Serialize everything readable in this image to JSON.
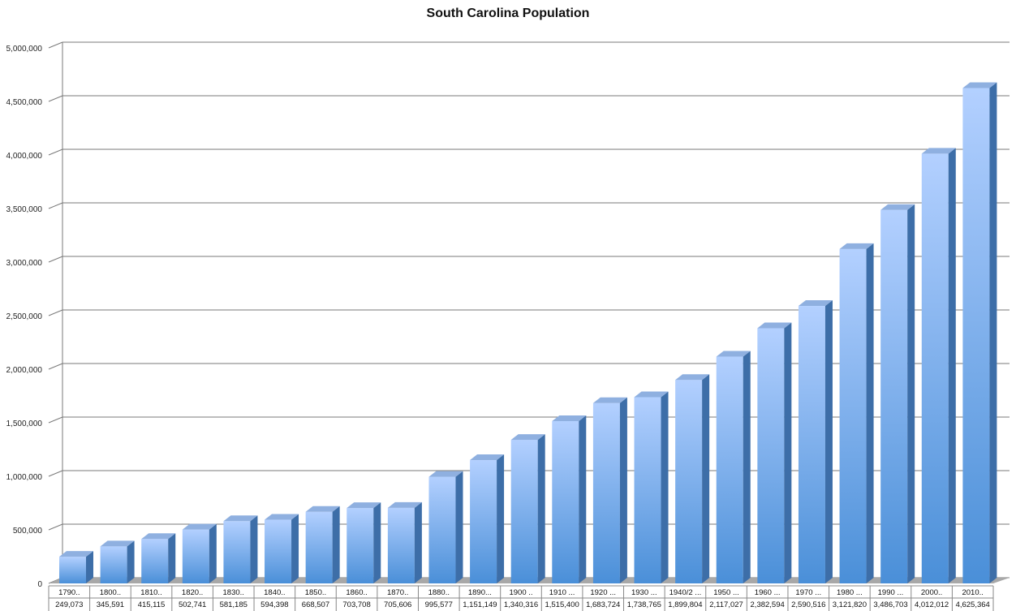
{
  "chart_data": {
    "type": "bar",
    "title": "South Carolina Population",
    "xlabel": "",
    "ylabel": "",
    "ylim": [
      0,
      5000000
    ],
    "y_ticks": [
      0,
      500000,
      1000000,
      1500000,
      2000000,
      2500000,
      3000000,
      3500000,
      4000000,
      4500000,
      5000000
    ],
    "y_tick_labels": [
      "0",
      "500,000",
      "1,000,000",
      "1,500,000",
      "2,000,000",
      "2,500,000",
      "3,000,000",
      "3,500,000",
      "4,000,000",
      "4,500,000",
      "5,000,000"
    ],
    "grid": true,
    "style": "3d-column",
    "categories": [
      "1790..",
      "1800..",
      "1810..",
      "1820..",
      "1830..",
      "1840..",
      "1850..",
      "1860..",
      "1870..",
      "1880..",
      "1890...",
      "1900 ..",
      "1910 ...",
      "1920 ...",
      "1930 ...",
      "1940/2 ...",
      "1950 ...",
      "1960 ...",
      "1970 ...",
      "1980 ...",
      "1990 ...",
      "2000..",
      "2010.."
    ],
    "values": [
      249073,
      345591,
      415115,
      502741,
      581185,
      594398,
      668507,
      703708,
      705606,
      995577,
      1151149,
      1340316,
      1515400,
      1683724,
      1738765,
      1899804,
      2117027,
      2382594,
      2590516,
      3121820,
      3486703,
      4012012,
      4625364
    ],
    "value_labels": [
      "249,073",
      "345,591",
      "415,115",
      "502,741",
      "581,185",
      "594,398",
      "668,507",
      "703,708",
      "705,606",
      "995,577",
      "1,151,149",
      "1,340,316",
      "1,515,400",
      "1,683,724",
      "1,738,765",
      "1,899,804",
      "2,117,027",
      "2,382,594",
      "2,590,516",
      "3,121,820",
      "3,486,703",
      "4,012,012",
      "4,625,364"
    ],
    "colors": {
      "bar_top": "#b3d0ff",
      "bar_bottom": "#4a8fd8",
      "bar_side": "#3d6ea8",
      "bar_cap": "#8fb0e0",
      "grid": "#7a7a7a",
      "floor": "#a8a8a8"
    }
  }
}
